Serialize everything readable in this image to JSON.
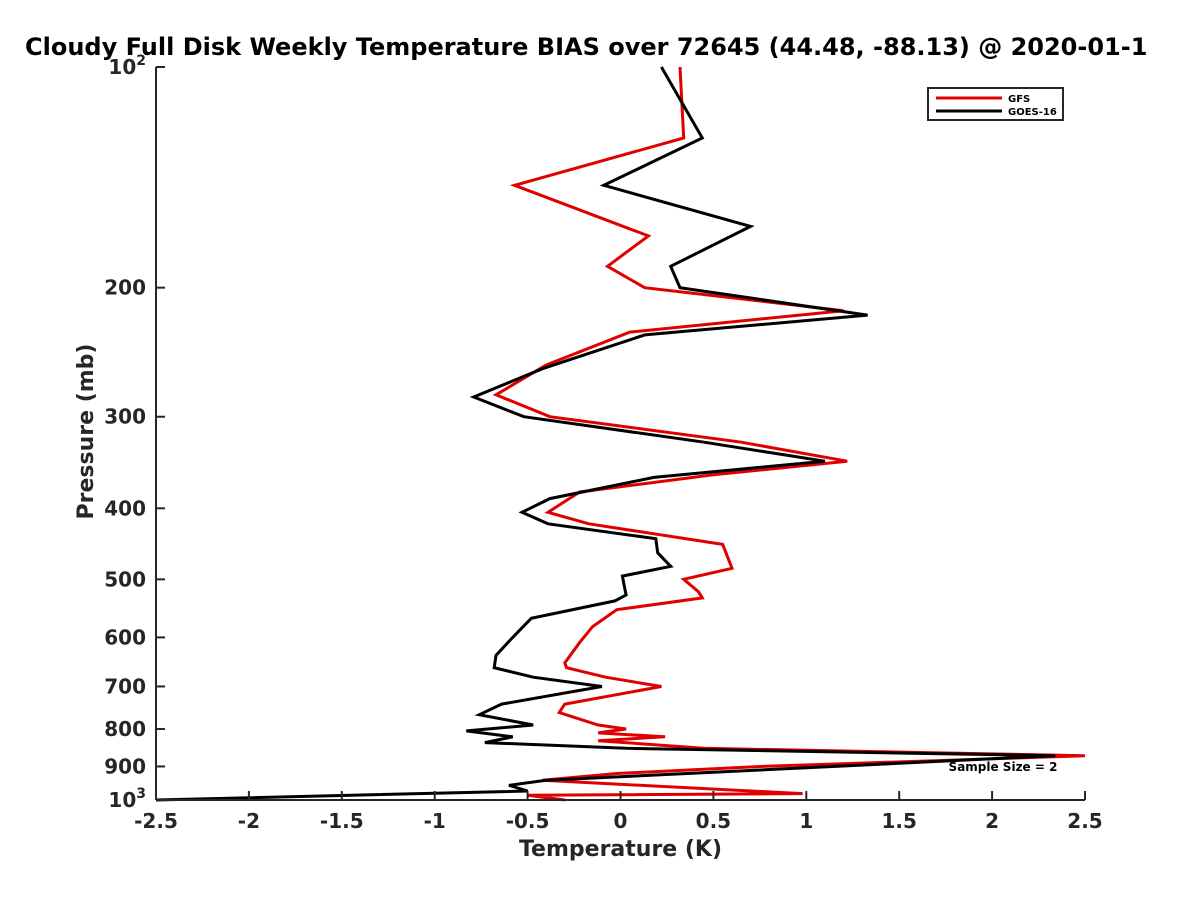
{
  "chart_data": {
    "type": "line",
    "title": "Cloudy Full Disk Weekly Temperature BIAS over 72645 (44.48, -88.13) @ 2020-01-1",
    "xlabel": "Temperature (K)",
    "ylabel": "Pressure (mb)",
    "xlim": [
      -2.5,
      2.5
    ],
    "ylim": [
      100,
      1000
    ],
    "y_scale": "log",
    "y_reversed": true,
    "x_ticks": [
      "-2.5",
      "-2",
      "-1.5",
      "-1",
      "-0.5",
      "0",
      "0.5",
      "1",
      "1.5",
      "2",
      "2.5"
    ],
    "y_ticks": [
      {
        "value": 100,
        "base": "10",
        "exp": "2"
      },
      {
        "value": 200,
        "label": "200"
      },
      {
        "value": 300,
        "label": "300"
      },
      {
        "value": 400,
        "label": "400"
      },
      {
        "value": 500,
        "label": "500"
      },
      {
        "value": 600,
        "label": "600"
      },
      {
        "value": 700,
        "label": "700"
      },
      {
        "value": 800,
        "label": "800"
      },
      {
        "value": 900,
        "label": "900"
      },
      {
        "value": 1000,
        "base": "10",
        "exp": "3"
      }
    ],
    "grid": false,
    "legend_position": "top-right",
    "annotation": "Sample Size = 2",
    "series": [
      {
        "name": "GFS",
        "color": "#e00000",
        "points": [
          [
            0.32,
            100
          ],
          [
            0.34,
            125
          ],
          [
            -0.57,
            145
          ],
          [
            0.15,
            170
          ],
          [
            -0.07,
            187
          ],
          [
            0.13,
            200
          ],
          [
            1.2,
            215
          ],
          [
            0.05,
            230
          ],
          [
            -0.4,
            255
          ],
          [
            -0.67,
            280
          ],
          [
            -0.38,
            300
          ],
          [
            0.65,
            325
          ],
          [
            1.22,
            345
          ],
          [
            0.5,
            360
          ],
          [
            -0.22,
            380
          ],
          [
            -0.39,
            405
          ],
          [
            -0.17,
            420
          ],
          [
            0.55,
            448
          ],
          [
            0.6,
            483
          ],
          [
            0.34,
            500
          ],
          [
            0.42,
            520
          ],
          [
            0.44,
            530
          ],
          [
            -0.02,
            550
          ],
          [
            -0.15,
            580
          ],
          [
            -0.22,
            610
          ],
          [
            -0.3,
            650
          ],
          [
            -0.29,
            660
          ],
          [
            -0.08,
            680
          ],
          [
            0.22,
            700
          ],
          [
            -0.3,
            740
          ],
          [
            -0.33,
            760
          ],
          [
            -0.12,
            790
          ],
          [
            0.03,
            800
          ],
          [
            -0.12,
            810
          ],
          [
            0.24,
            820
          ],
          [
            -0.12,
            830
          ],
          [
            0.45,
            850
          ],
          [
            2.5,
            870
          ],
          [
            0.75,
            900
          ],
          [
            -0.02,
            920
          ],
          [
            -0.42,
            940
          ],
          [
            0.98,
            980
          ],
          [
            -0.5,
            985
          ],
          [
            -0.3,
            1000
          ]
        ]
      },
      {
        "name": "GOES-16",
        "color": "#000000",
        "points": [
          [
            0.22,
            100
          ],
          [
            0.44,
            125
          ],
          [
            -0.09,
            145
          ],
          [
            0.7,
            165
          ],
          [
            0.27,
            187
          ],
          [
            0.32,
            200
          ],
          [
            1.33,
            218
          ],
          [
            0.13,
            232
          ],
          [
            -0.42,
            258
          ],
          [
            -0.79,
            282
          ],
          [
            -0.52,
            300
          ],
          [
            0.45,
            325
          ],
          [
            1.1,
            345
          ],
          [
            0.18,
            363
          ],
          [
            -0.38,
            388
          ],
          [
            -0.53,
            405
          ],
          [
            -0.39,
            420
          ],
          [
            0.19,
            440
          ],
          [
            0.2,
            460
          ],
          [
            0.27,
            480
          ],
          [
            0.01,
            495
          ],
          [
            0.02,
            510
          ],
          [
            0.03,
            525
          ],
          [
            -0.03,
            535
          ],
          [
            -0.48,
            565
          ],
          [
            -0.58,
            600
          ],
          [
            -0.67,
            635
          ],
          [
            -0.68,
            660
          ],
          [
            -0.47,
            680
          ],
          [
            -0.1,
            700
          ],
          [
            -0.64,
            740
          ],
          [
            -0.76,
            765
          ],
          [
            -0.47,
            790
          ],
          [
            -0.83,
            805
          ],
          [
            -0.58,
            820
          ],
          [
            -0.73,
            835
          ],
          [
            0.03,
            850
          ],
          [
            2.34,
            870
          ],
          [
            -0.4,
            940
          ],
          [
            -0.6,
            955
          ],
          [
            -0.5,
            972
          ],
          [
            -2.5,
            1000
          ]
        ]
      }
    ]
  }
}
